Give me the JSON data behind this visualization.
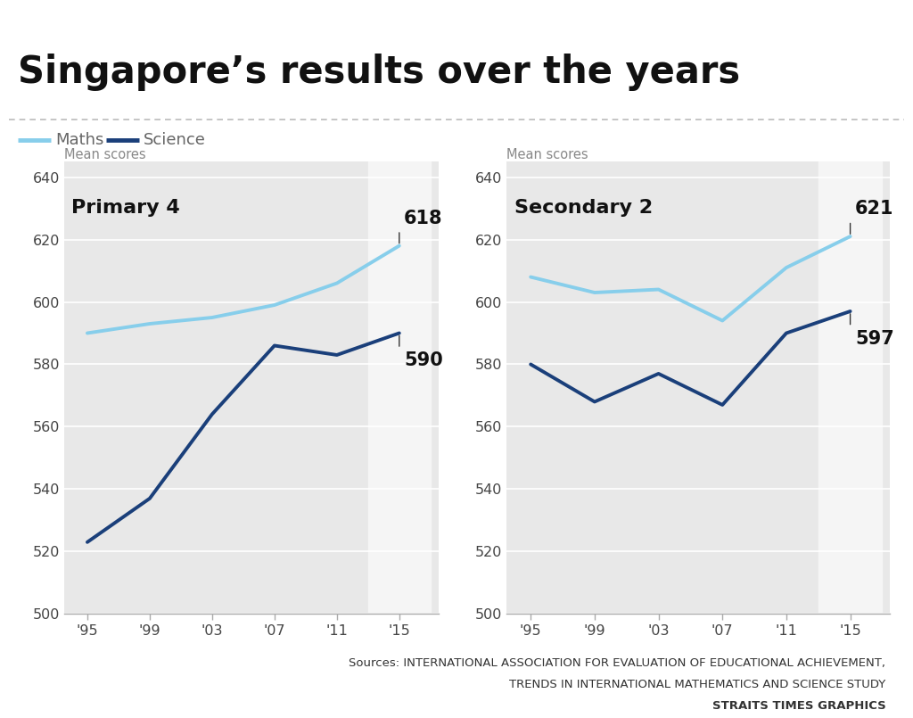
{
  "title": "Singapore’s results over the years",
  "title_bar_color": "#1a5fa8",
  "maths_color": "#87CEEB",
  "science_color": "#1a3f7a",
  "background_color": "#ffffff",
  "plot_bg_color": "#e8e8e8",
  "last_col_bg_color": "#f5f5f5",
  "years": [
    1995,
    1999,
    2003,
    2007,
    2011,
    2015
  ],
  "year_labels": [
    "'95",
    "'99",
    "'03",
    "'07",
    "'11",
    "'15"
  ],
  "p4_maths": [
    590,
    593,
    595,
    599,
    606,
    618
  ],
  "p4_science": [
    523,
    537,
    564,
    586,
    583,
    590
  ],
  "s2_maths": [
    608,
    603,
    604,
    594,
    611,
    621
  ],
  "s2_science": [
    580,
    568,
    577,
    567,
    590,
    597
  ],
  "p4_label": "Primary 4",
  "s2_label": "Secondary 2",
  "ylim": [
    500,
    645
  ],
  "yticks": [
    500,
    520,
    540,
    560,
    580,
    600,
    620,
    640
  ],
  "mean_scores_label": "Mean scores",
  "source_line1": "Sources: INTERNATIONAL ASSOCIATION FOR EVALUATION OF EDUCATIONAL ACHIEVEMENT,",
  "source_line2": "TRENDS IN INTERNATIONAL MATHEMATICS AND SCIENCE STUDY",
  "source_line3": "STRAITS TIMES GRAPHICS",
  "p4_last_maths": 618,
  "p4_last_science": 590,
  "s2_last_maths": 621,
  "s2_last_science": 597
}
